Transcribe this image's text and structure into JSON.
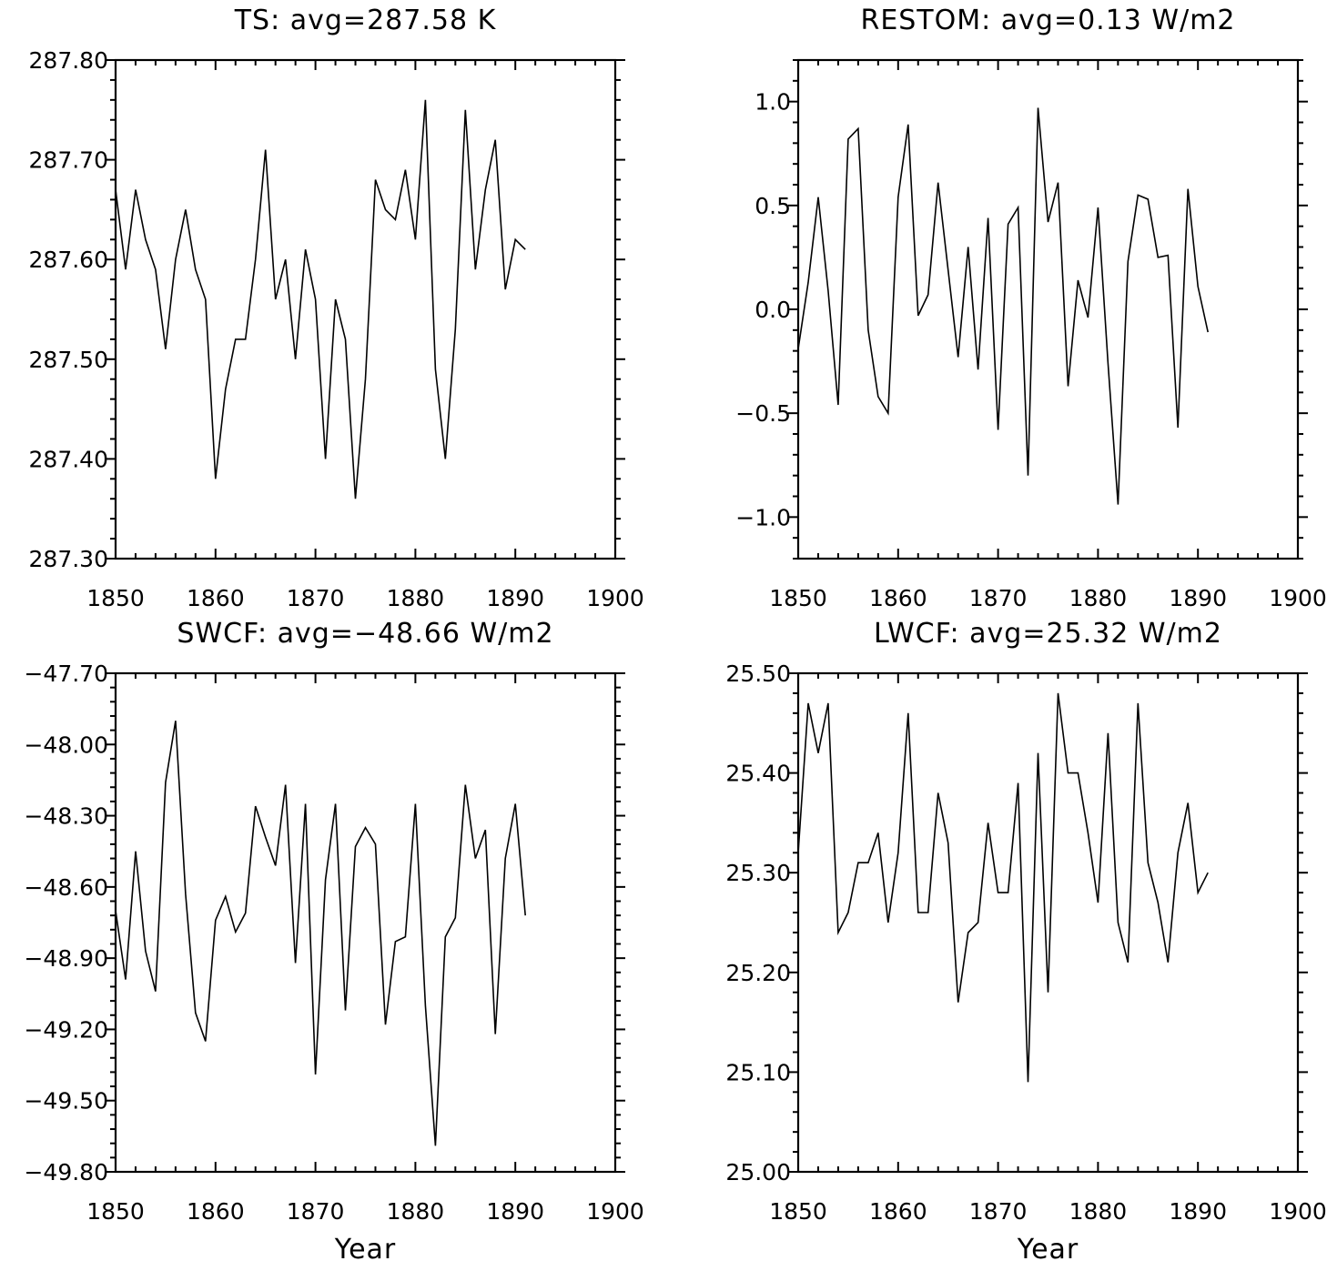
{
  "chart_data": [
    {
      "type": "line",
      "title": "TS: avg=287.58 K",
      "xlabel": "",
      "ylabel": "",
      "xlim": [
        1850,
        1900
      ],
      "ylim": [
        287.3,
        287.8
      ],
      "xticks": [
        "1850",
        "1860",
        "1870",
        "1880",
        "1890",
        "1900"
      ],
      "yticks": [
        "287.30",
        "287.40",
        "287.50",
        "287.60",
        "287.70",
        "287.80"
      ],
      "x": [
        1850,
        1851,
        1852,
        1853,
        1854,
        1855,
        1856,
        1857,
        1858,
        1859,
        1860,
        1861,
        1862,
        1863,
        1864,
        1865,
        1866,
        1867,
        1868,
        1869,
        1870,
        1871,
        1872,
        1873,
        1874,
        1875,
        1876,
        1877,
        1878,
        1879,
        1880,
        1881,
        1882,
        1883,
        1884,
        1885,
        1886,
        1887,
        1888,
        1889,
        1890,
        1891
      ],
      "series": [
        {
          "values": [
            287.67,
            287.59,
            287.67,
            287.62,
            287.59,
            287.51,
            287.6,
            287.65,
            287.59,
            287.56,
            287.38,
            287.47,
            287.52,
            287.52,
            287.6,
            287.71,
            287.56,
            287.6,
            287.5,
            287.61,
            287.56,
            287.4,
            287.56,
            287.52,
            287.36,
            287.48,
            287.68,
            287.65,
            287.64,
            287.69,
            287.62,
            287.76,
            287.49,
            287.4,
            287.53,
            287.75,
            287.59,
            287.67,
            287.72,
            287.57,
            287.62,
            287.61
          ]
        }
      ]
    },
    {
      "type": "line",
      "title": "RESTOM: avg=0.13 W/m2",
      "xlabel": "",
      "ylabel": "",
      "xlim": [
        1850,
        1900
      ],
      "ylim": [
        -1.2,
        1.2
      ],
      "xticks": [
        "1850",
        "1860",
        "1870",
        "1880",
        "1890",
        "1900"
      ],
      "yticks": [
        "−1.0",
        "−0.5",
        "0.0",
        "0.5",
        "1.0"
      ],
      "ytick_values": [
        -1.0,
        -0.5,
        0.0,
        0.5,
        1.0
      ],
      "x": [
        1850,
        1851,
        1852,
        1853,
        1854,
        1855,
        1856,
        1857,
        1858,
        1859,
        1860,
        1861,
        1862,
        1863,
        1864,
        1865,
        1866,
        1867,
        1868,
        1869,
        1870,
        1871,
        1872,
        1873,
        1874,
        1875,
        1876,
        1877,
        1878,
        1879,
        1880,
        1881,
        1882,
        1883,
        1884,
        1885,
        1886,
        1887,
        1888,
        1889,
        1890,
        1891
      ],
      "series": [
        {
          "values": [
            -0.19,
            0.13,
            0.54,
            0.09,
            -0.46,
            0.82,
            0.87,
            -0.1,
            -0.42,
            -0.5,
            0.54,
            0.89,
            -0.03,
            0.07,
            0.61,
            0.19,
            -0.23,
            0.3,
            -0.29,
            0.44,
            -0.58,
            0.41,
            0.49,
            -0.8,
            0.97,
            0.42,
            0.61,
            -0.37,
            0.14,
            -0.04,
            0.49,
            -0.26,
            -0.94,
            0.23,
            0.55,
            0.53,
            0.25,
            0.26,
            -0.57,
            0.58,
            0.11,
            -0.11
          ]
        }
      ]
    },
    {
      "type": "line",
      "title": "SWCF: avg=−48.66 W/m2",
      "xlabel": "Year",
      "ylabel": "",
      "xlim": [
        1850,
        1900
      ],
      "ylim": [
        -49.8,
        -47.7
      ],
      "xticks": [
        "1850",
        "1860",
        "1870",
        "1880",
        "1890",
        "1900"
      ],
      "yticks": [
        "−49.80",
        "−49.50",
        "−49.20",
        "−48.90",
        "−48.60",
        "−48.30",
        "−48.00",
        "−47.70"
      ],
      "ytick_values": [
        -49.8,
        -49.5,
        -49.2,
        -48.9,
        -48.6,
        -48.3,
        -48.0,
        -47.7
      ],
      "x": [
        1850,
        1851,
        1852,
        1853,
        1854,
        1855,
        1856,
        1857,
        1858,
        1859,
        1860,
        1861,
        1862,
        1863,
        1864,
        1865,
        1866,
        1867,
        1868,
        1869,
        1870,
        1871,
        1872,
        1873,
        1874,
        1875,
        1876,
        1877,
        1878,
        1879,
        1880,
        1881,
        1882,
        1883,
        1884,
        1885,
        1886,
        1887,
        1888,
        1889,
        1890,
        1891
      ],
      "series": [
        {
          "values": [
            -48.7,
            -48.99,
            -48.45,
            -48.87,
            -49.04,
            -48.16,
            -47.9,
            -48.63,
            -49.13,
            -49.25,
            -48.74,
            -48.64,
            -48.79,
            -48.71,
            -48.26,
            -48.39,
            -48.51,
            -48.17,
            -48.92,
            -48.25,
            -49.39,
            -48.57,
            -48.25,
            -49.12,
            -48.43,
            -48.35,
            -48.42,
            -49.18,
            -48.83,
            -48.81,
            -48.25,
            -49.1,
            -49.69,
            -48.81,
            -48.73,
            -48.17,
            -48.48,
            -48.36,
            -49.22,
            -48.48,
            -48.25,
            -48.72
          ]
        }
      ]
    },
    {
      "type": "line",
      "title": "LWCF: avg=25.32 W/m2",
      "xlabel": "Year",
      "ylabel": "",
      "xlim": [
        1850,
        1900
      ],
      "ylim": [
        25.0,
        25.5
      ],
      "xticks": [
        "1850",
        "1860",
        "1870",
        "1880",
        "1890",
        "1900"
      ],
      "yticks": [
        "25.00",
        "25.10",
        "25.20",
        "25.30",
        "25.40",
        "25.50"
      ],
      "x": [
        1850,
        1851,
        1852,
        1853,
        1854,
        1855,
        1856,
        1857,
        1858,
        1859,
        1860,
        1861,
        1862,
        1863,
        1864,
        1865,
        1866,
        1867,
        1868,
        1869,
        1870,
        1871,
        1872,
        1873,
        1874,
        1875,
        1876,
        1877,
        1878,
        1879,
        1880,
        1881,
        1882,
        1883,
        1884,
        1885,
        1886,
        1887,
        1888,
        1889,
        1890,
        1891
      ],
      "series": [
        {
          "values": [
            25.32,
            25.47,
            25.42,
            25.47,
            25.24,
            25.26,
            25.31,
            25.31,
            25.34,
            25.25,
            25.32,
            25.46,
            25.26,
            25.26,
            25.38,
            25.33,
            25.17,
            25.24,
            25.25,
            25.35,
            25.28,
            25.28,
            25.39,
            25.09,
            25.42,
            25.18,
            25.48,
            25.4,
            25.4,
            25.34,
            25.27,
            25.44,
            25.25,
            25.21,
            25.47,
            25.31,
            25.27,
            25.21,
            25.32,
            25.37,
            25.28,
            25.3
          ]
        }
      ]
    }
  ]
}
